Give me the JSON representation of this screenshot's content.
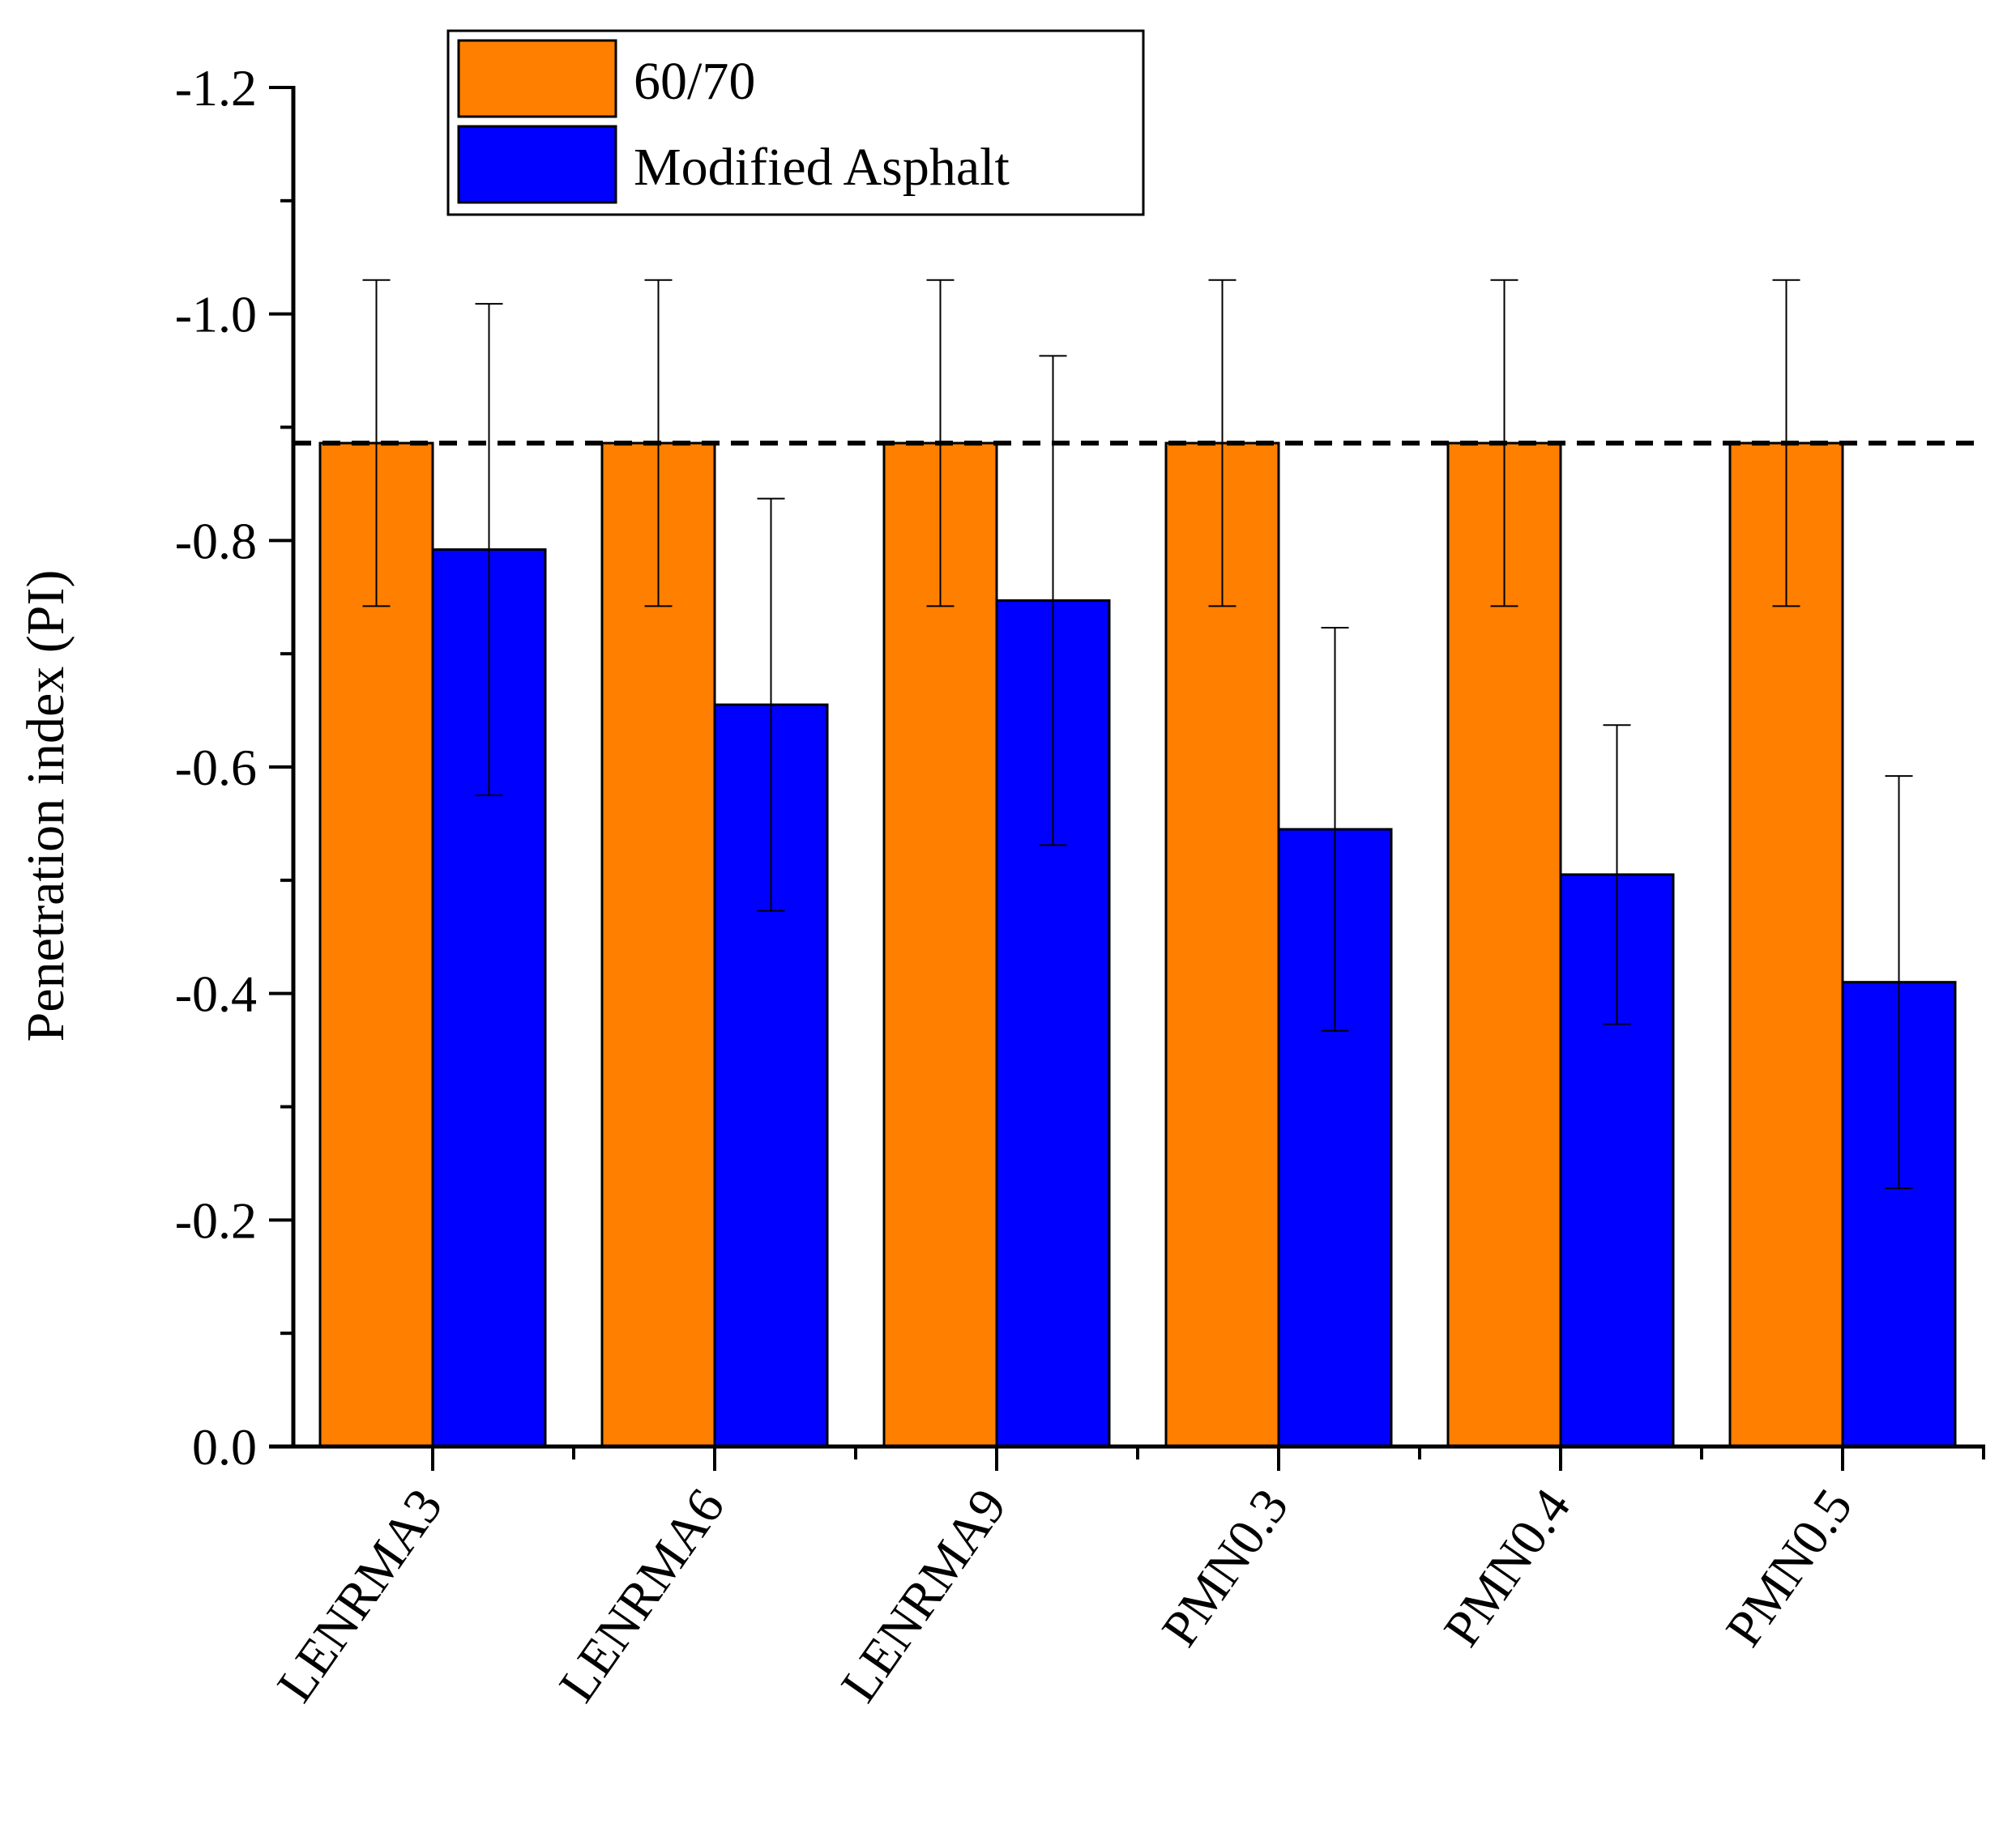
{
  "chart_data": {
    "type": "bar",
    "title": "",
    "xlabel": "",
    "ylabel": "Penetration index (PI)",
    "ylim": [
      0,
      -1.2
    ],
    "y_inverted": true,
    "yticks": [
      "0.0",
      "-0.2",
      "-0.4",
      "-0.6",
      "-0.8",
      "-1.0",
      "-1.2"
    ],
    "ytick_values": [
      0.0,
      -0.2,
      -0.4,
      -0.6,
      -0.8,
      -1.0,
      -1.2
    ],
    "categories": [
      "LENRMA3",
      "LENRMA6",
      "LENRMA9",
      "PMN0.3",
      "PMN0.4",
      "PMN0.5"
    ],
    "series": [
      {
        "name": "60/70",
        "color": "#ff7f00",
        "values": [
          -0.886,
          -0.886,
          -0.886,
          -0.886,
          -0.886,
          -0.886
        ],
        "error": [
          0.144,
          0.144,
          0.144,
          0.144,
          0.144,
          0.144
        ]
      },
      {
        "name": "Modified Asphalt",
        "color": "#0000ff",
        "values": [
          -0.792,
          -0.655,
          -0.747,
          -0.545,
          -0.505,
          -0.41
        ],
        "error": [
          0.217,
          0.182,
          0.216,
          0.178,
          0.132,
          0.182
        ]
      }
    ],
    "reference_line": {
      "value": -0.886,
      "style": "dashed"
    },
    "legend_position": "top-left",
    "grid": false
  }
}
